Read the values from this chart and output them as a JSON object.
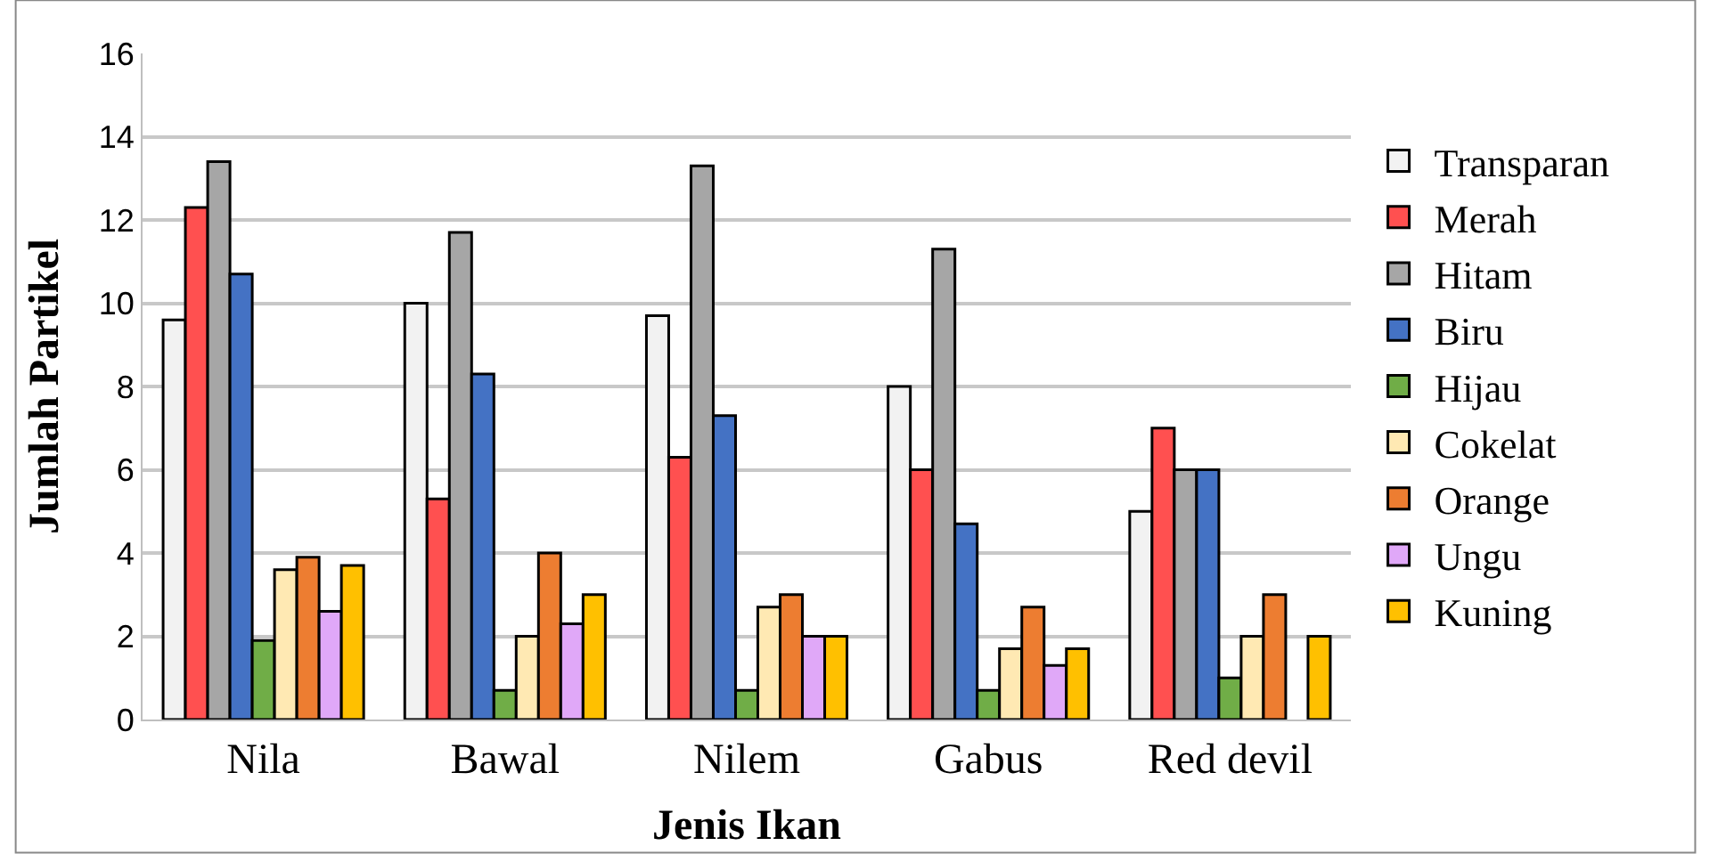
{
  "chart_data": {
    "type": "bar",
    "xlabel": "Jenis Ikan",
    "ylabel": "Jumlah Partikel",
    "categories": [
      "Nila",
      "Bawal",
      "Nilem",
      "Gabus",
      "Red devil"
    ],
    "series": [
      {
        "name": "Transparan",
        "color": "#f2f2f2",
        "values": [
          9.6,
          10.0,
          9.7,
          8.0,
          5.0
        ]
      },
      {
        "name": "Merah",
        "color": "#ff5050",
        "values": [
          12.3,
          5.3,
          6.3,
          6.0,
          7.0
        ]
      },
      {
        "name": "Hitam",
        "color": "#a6a6a6",
        "values": [
          13.4,
          11.7,
          13.3,
          11.3,
          6.0
        ]
      },
      {
        "name": "Biru",
        "color": "#4472c4",
        "values": [
          10.7,
          8.3,
          7.3,
          4.7,
          6.0
        ]
      },
      {
        "name": "Hijau",
        "color": "#70ad47",
        "values": [
          1.9,
          0.7,
          0.7,
          0.7,
          1.0
        ]
      },
      {
        "name": "Cokelat",
        "color": "#ffe9b3",
        "values": [
          3.6,
          2.0,
          2.7,
          1.7,
          2.0
        ]
      },
      {
        "name": "Orange",
        "color": "#ed7d31",
        "values": [
          3.9,
          4.0,
          3.0,
          2.7,
          3.0
        ]
      },
      {
        "name": "Ungu",
        "color": "#e0a8f8",
        "values": [
          2.6,
          2.3,
          2.0,
          1.3,
          null
        ]
      },
      {
        "name": "Kuning",
        "color": "#ffc000",
        "values": [
          3.7,
          3.0,
          2.0,
          1.7,
          2.0
        ]
      }
    ],
    "ylim": [
      0,
      16
    ],
    "yticks": [
      0,
      2,
      4,
      6,
      8,
      10,
      12,
      14,
      16
    ],
    "grid": "y",
    "legend": "right"
  }
}
